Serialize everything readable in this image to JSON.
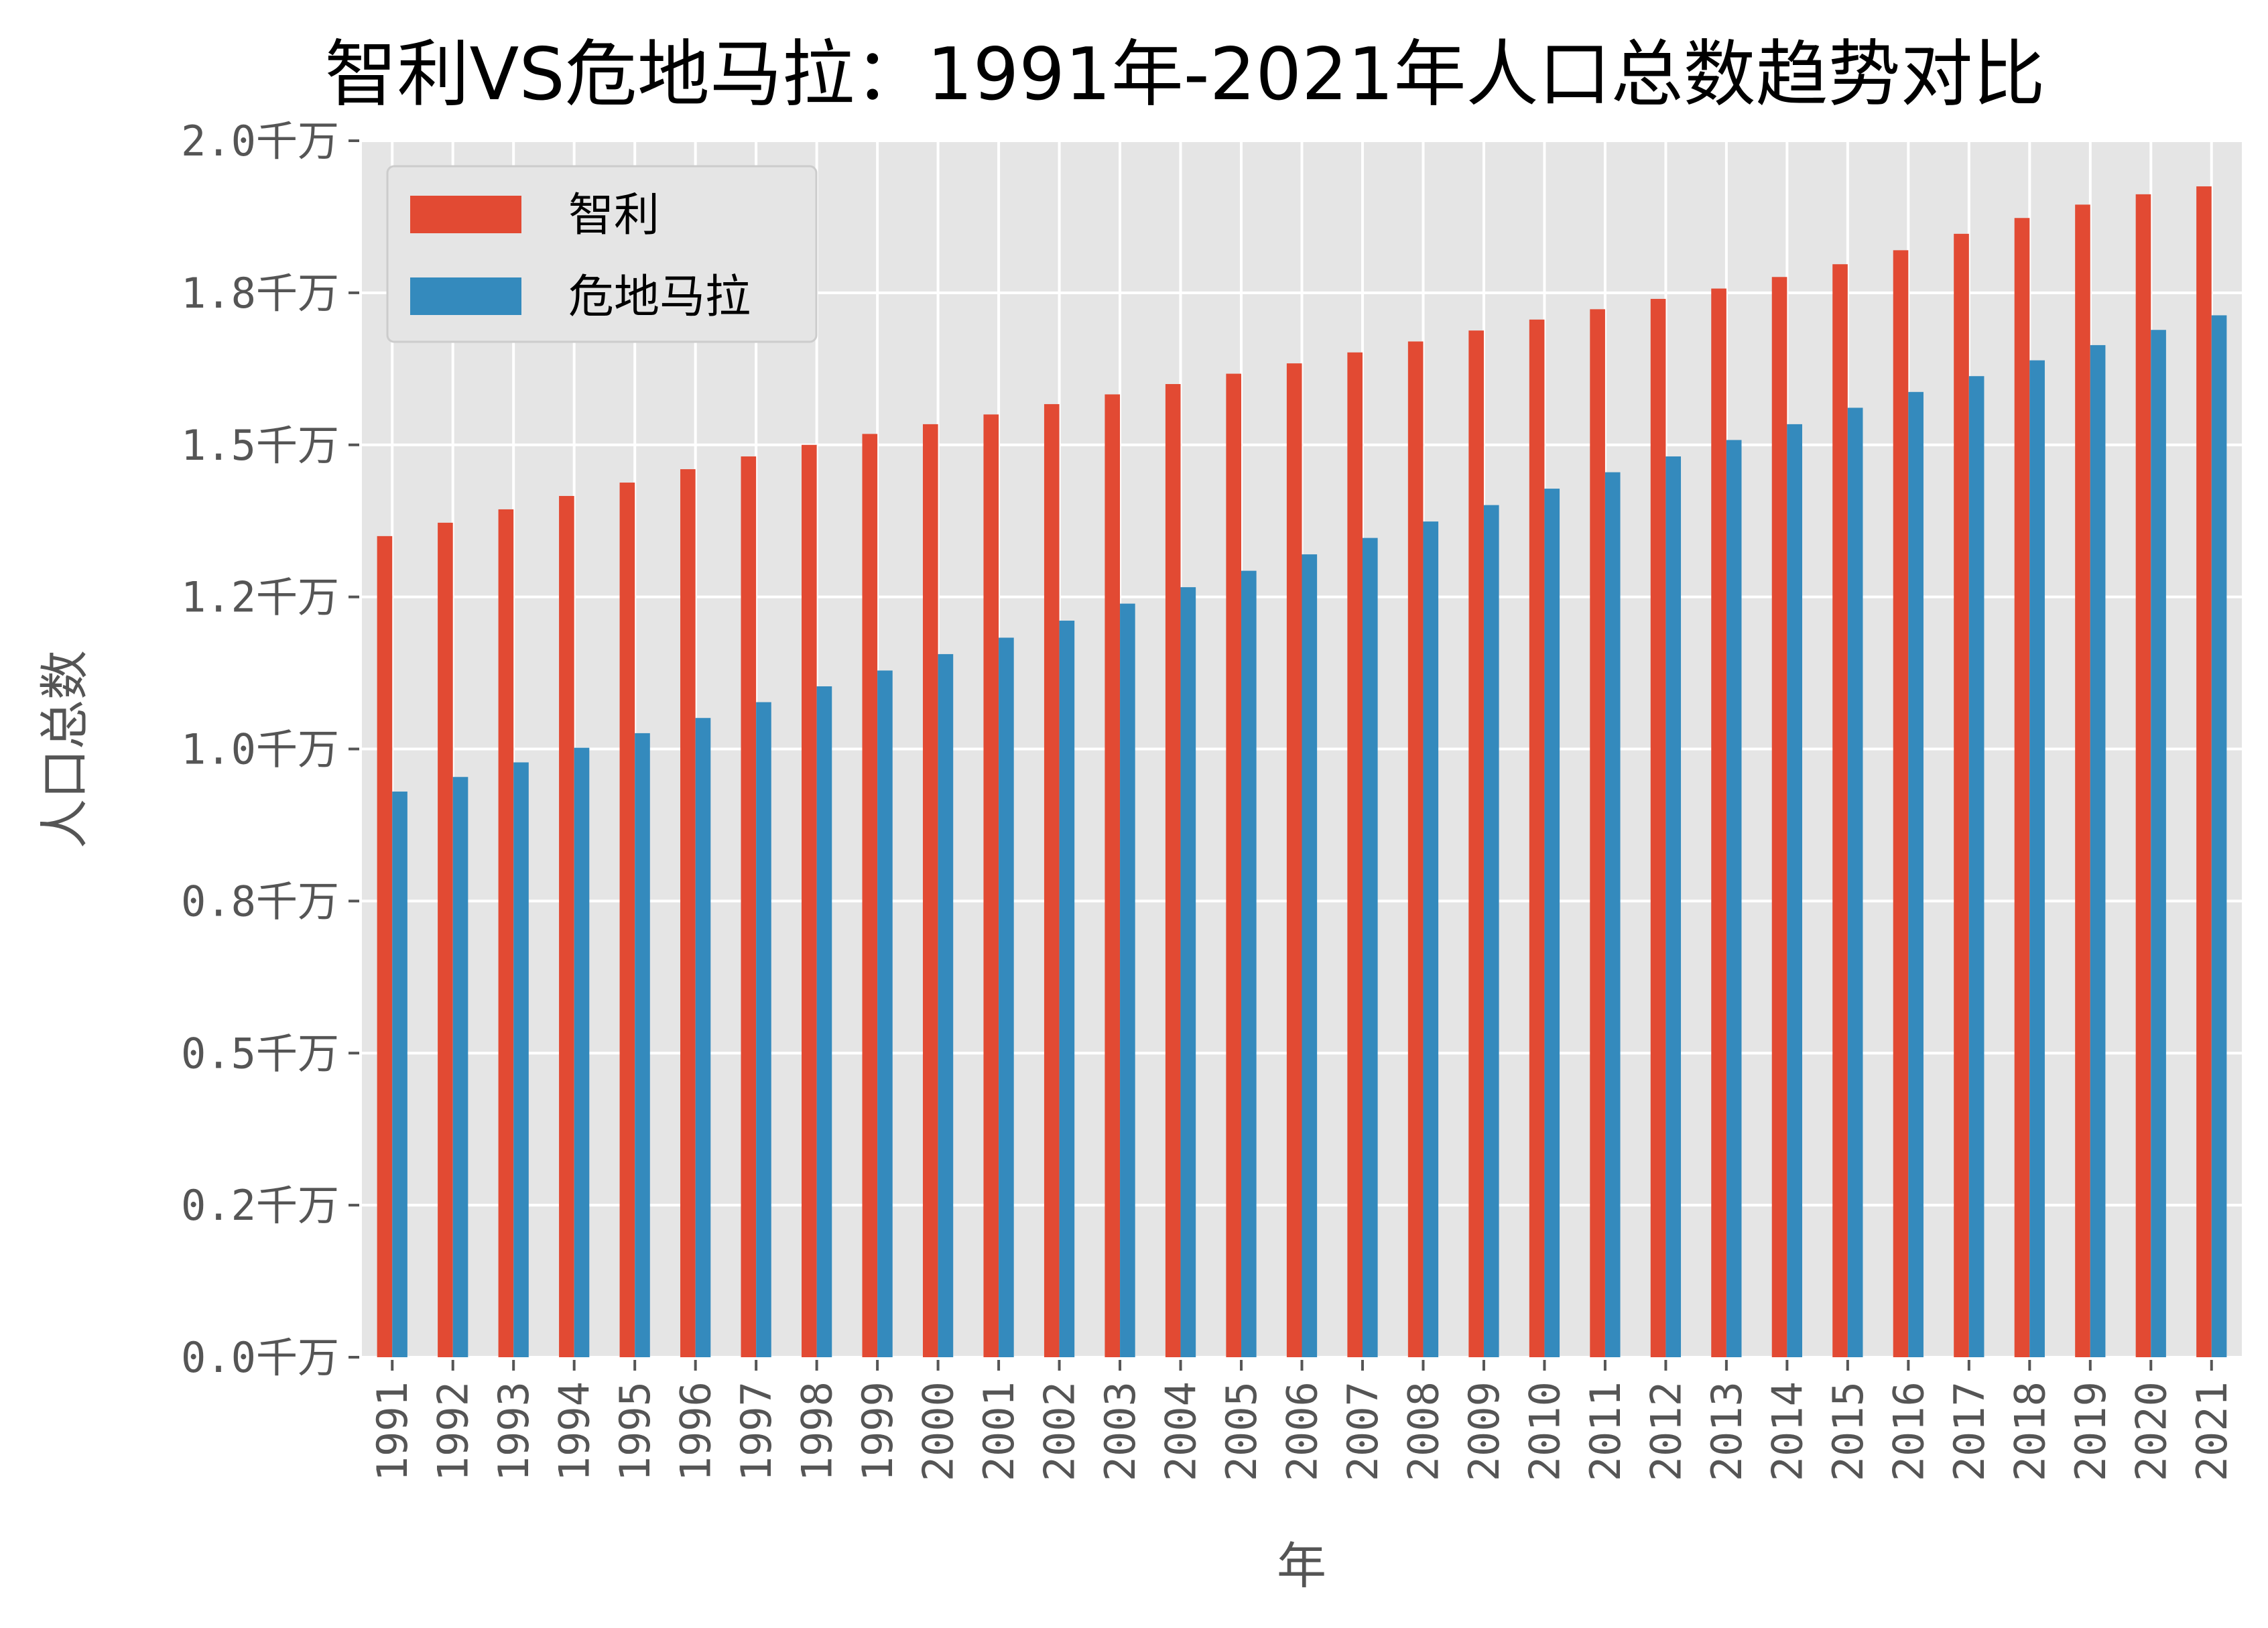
{
  "chart_data": {
    "type": "bar",
    "title": "智利VS危地马拉：1991年-2021年人口总数趋势对比",
    "xlabel": "年",
    "ylabel": "人口总数",
    "ylim": [
      0,
      20000000
    ],
    "yticks": [
      0,
      2500000,
      5000000,
      7500000,
      10000000,
      12500000,
      15000000,
      17500000,
      20000000
    ],
    "ytick_labels": [
      "0.0千万",
      "0.2千万",
      "0.5千万",
      "0.8千万",
      "1.0千万",
      "1.2千万",
      "1.5千万",
      "1.8千万",
      "2.0千万"
    ],
    "grid": true,
    "legend_position": "top-left",
    "categories": [
      "1991",
      "1992",
      "1993",
      "1994",
      "1995",
      "1996",
      "1997",
      "1998",
      "1999",
      "2000",
      "2001",
      "2002",
      "2003",
      "2004",
      "2005",
      "2006",
      "2007",
      "2008",
      "2009",
      "2010",
      "2011",
      "2012",
      "2013",
      "2014",
      "2015",
      "2016",
      "2017",
      "2018",
      "2019",
      "2020",
      "2021"
    ],
    "series": [
      {
        "name": "智利",
        "color": "#E24A33",
        "values": [
          13500000,
          13720000,
          13940000,
          14160000,
          14380000,
          14600000,
          14810000,
          15000000,
          15180000,
          15340000,
          15500000,
          15670000,
          15830000,
          16000000,
          16170000,
          16340000,
          16520000,
          16700000,
          16880000,
          17060000,
          17230000,
          17400000,
          17570000,
          17760000,
          17970000,
          18200000,
          18470000,
          18730000,
          18950000,
          19120000,
          19250000
        ]
      },
      {
        "name": "危地马拉",
        "color": "#348ABD",
        "values": [
          9300000,
          9540000,
          9780000,
          10020000,
          10260000,
          10510000,
          10770000,
          11030000,
          11290000,
          11560000,
          11830000,
          12110000,
          12390000,
          12660000,
          12930000,
          13200000,
          13470000,
          13740000,
          14010000,
          14280000,
          14550000,
          14810000,
          15080000,
          15340000,
          15610000,
          15870000,
          16130000,
          16390000,
          16640000,
          16890000,
          17130000
        ]
      }
    ]
  },
  "colors": {
    "plot_background": "#E5E5E5",
    "grid": "#FFFFFF",
    "tick_text": "#555555"
  }
}
